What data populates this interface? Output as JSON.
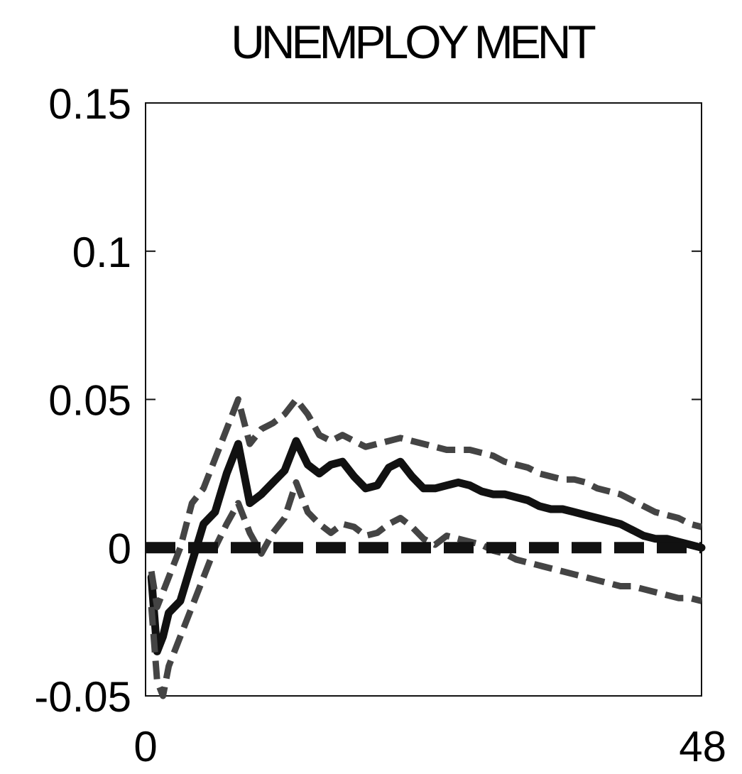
{
  "chart_data": {
    "type": "line",
    "title": "UNEMPLOY MENT",
    "xlabel": "",
    "ylabel": "",
    "xlim": [
      0,
      48
    ],
    "ylim": [
      -0.05,
      0.15
    ],
    "x_tick_labels": [
      "0",
      "48"
    ],
    "y_tick_labels": [
      "0.15",
      "0.1",
      "0.05",
      "0",
      "-0.05"
    ],
    "y_tick_values": [
      0.15,
      0.1,
      0.05,
      0,
      -0.05
    ],
    "x_tick_values": [
      0,
      48
    ],
    "grid": false,
    "legend": "none",
    "colors": {
      "line": "#111111",
      "band": "#444444",
      "zero": "#111111"
    },
    "series": [
      {
        "role": "response",
        "values": [
          [
            0.5,
            -0.01
          ],
          [
            1,
            -0.035
          ],
          [
            1.5,
            -0.03
          ],
          [
            2,
            -0.022
          ],
          [
            3,
            -0.018
          ],
          [
            4,
            -0.005
          ],
          [
            5,
            0.008
          ],
          [
            6,
            0.012
          ],
          [
            7,
            0.025
          ],
          [
            8,
            0.035
          ],
          [
            9,
            0.015
          ],
          [
            10,
            0.018
          ],
          [
            11,
            0.022
          ],
          [
            12,
            0.026
          ],
          [
            13,
            0.036
          ],
          [
            14,
            0.028
          ],
          [
            15,
            0.025
          ],
          [
            16,
            0.028
          ],
          [
            17,
            0.029
          ],
          [
            18,
            0.024
          ],
          [
            19,
            0.02
          ],
          [
            20,
            0.021
          ],
          [
            21,
            0.027
          ],
          [
            22,
            0.029
          ],
          [
            23,
            0.024
          ],
          [
            24,
            0.02
          ],
          [
            25,
            0.02
          ],
          [
            26,
            0.021
          ],
          [
            27,
            0.022
          ],
          [
            28,
            0.021
          ],
          [
            29,
            0.019
          ],
          [
            30,
            0.018
          ],
          [
            31,
            0.018
          ],
          [
            32,
            0.017
          ],
          [
            33,
            0.016
          ],
          [
            34,
            0.014
          ],
          [
            35,
            0.013
          ],
          [
            36,
            0.013
          ],
          [
            37,
            0.012
          ],
          [
            38,
            0.011
          ],
          [
            39,
            0.01
          ],
          [
            40,
            0.009
          ],
          [
            41,
            0.008
          ],
          [
            42,
            0.006
          ],
          [
            43,
            0.004
          ],
          [
            44,
            0.003
          ],
          [
            45,
            0.003
          ],
          [
            46,
            0.002
          ],
          [
            47,
            0.001
          ],
          [
            48,
            0.0
          ]
        ]
      },
      {
        "role": "upper_band",
        "values": [
          [
            0.5,
            -0.008
          ],
          [
            1,
            -0.02
          ],
          [
            2,
            -0.01
          ],
          [
            3,
            0.0
          ],
          [
            4,
            0.015
          ],
          [
            5,
            0.02
          ],
          [
            6,
            0.03
          ],
          [
            7,
            0.04
          ],
          [
            8,
            0.05
          ],
          [
            9,
            0.035
          ],
          [
            10,
            0.04
          ],
          [
            11,
            0.042
          ],
          [
            12,
            0.045
          ],
          [
            13,
            0.05
          ],
          [
            14,
            0.045
          ],
          [
            15,
            0.038
          ],
          [
            16,
            0.036
          ],
          [
            17,
            0.038
          ],
          [
            18,
            0.036
          ],
          [
            19,
            0.034
          ],
          [
            20,
            0.035
          ],
          [
            21,
            0.036
          ],
          [
            22,
            0.037
          ],
          [
            23,
            0.036
          ],
          [
            24,
            0.035
          ],
          [
            25,
            0.034
          ],
          [
            26,
            0.033
          ],
          [
            27,
            0.033
          ],
          [
            28,
            0.033
          ],
          [
            29,
            0.032
          ],
          [
            30,
            0.031
          ],
          [
            31,
            0.029
          ],
          [
            32,
            0.028
          ],
          [
            33,
            0.027
          ],
          [
            34,
            0.025
          ],
          [
            35,
            0.024
          ],
          [
            36,
            0.023
          ],
          [
            37,
            0.023
          ],
          [
            38,
            0.022
          ],
          [
            39,
            0.02
          ],
          [
            40,
            0.019
          ],
          [
            41,
            0.018
          ],
          [
            42,
            0.016
          ],
          [
            43,
            0.014
          ],
          [
            44,
            0.012
          ],
          [
            45,
            0.011
          ],
          [
            46,
            0.01
          ],
          [
            47,
            0.008
          ],
          [
            48,
            0.007
          ]
        ]
      },
      {
        "role": "lower_band",
        "values": [
          [
            0.5,
            -0.02
          ],
          [
            1,
            -0.045
          ],
          [
            1.5,
            -0.05
          ],
          [
            2,
            -0.04
          ],
          [
            3,
            -0.03
          ],
          [
            4,
            -0.02
          ],
          [
            5,
            -0.01
          ],
          [
            6,
            0.0
          ],
          [
            7,
            0.008
          ],
          [
            8,
            0.015
          ],
          [
            9,
            0.005
          ],
          [
            10,
            -0.002
          ],
          [
            11,
            0.005
          ],
          [
            12,
            0.01
          ],
          [
            13,
            0.022
          ],
          [
            14,
            0.012
          ],
          [
            15,
            0.008
          ],
          [
            16,
            0.005
          ],
          [
            17,
            0.008
          ],
          [
            18,
            0.007
          ],
          [
            19,
            0.004
          ],
          [
            20,
            0.005
          ],
          [
            21,
            0.008
          ],
          [
            22,
            0.01
          ],
          [
            23,
            0.007
          ],
          [
            24,
            0.003
          ],
          [
            25,
            0.001
          ],
          [
            26,
            0.004
          ],
          [
            27,
            0.003
          ],
          [
            28,
            0.002
          ],
          [
            29,
            0.001
          ],
          [
            30,
            -0.001
          ],
          [
            31,
            -0.002
          ],
          [
            32,
            -0.004
          ],
          [
            33,
            -0.005
          ],
          [
            34,
            -0.006
          ],
          [
            35,
            -0.007
          ],
          [
            36,
            -0.008
          ],
          [
            37,
            -0.009
          ],
          [
            38,
            -0.01
          ],
          [
            39,
            -0.011
          ],
          [
            40,
            -0.012
          ],
          [
            41,
            -0.013
          ],
          [
            42,
            -0.013
          ],
          [
            43,
            -0.014
          ],
          [
            44,
            -0.015
          ],
          [
            45,
            -0.016
          ],
          [
            46,
            -0.017
          ],
          [
            47,
            -0.017
          ],
          [
            48,
            -0.018
          ]
        ]
      },
      {
        "role": "zero_reference",
        "values": [
          [
            0,
            0
          ],
          [
            48,
            0
          ]
        ]
      }
    ]
  }
}
